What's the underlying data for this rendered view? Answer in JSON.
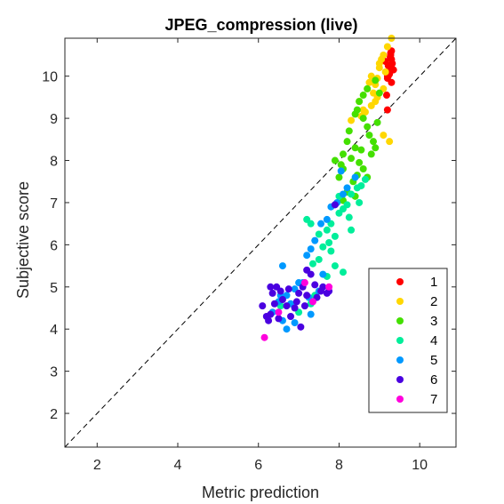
{
  "chart_data": {
    "type": "scatter",
    "title": "JPEG_compression (live)",
    "xlabel": "Metric prediction",
    "ylabel": "Subjective score",
    "xlim": [
      1.2,
      10.9
    ],
    "ylim": [
      1.2,
      10.9
    ],
    "xticks": [
      2,
      4,
      6,
      8,
      10
    ],
    "yticks": [
      2,
      3,
      4,
      5,
      6,
      7,
      8,
      9,
      10
    ],
    "grid": false,
    "reference_line": "y = x (dashed)",
    "legend_position": "bottom-right",
    "series": [
      {
        "name": "1",
        "color": "#ff0000",
        "points": [
          [
            9.2,
            10.0
          ],
          [
            9.25,
            10.1
          ],
          [
            9.3,
            10.2
          ],
          [
            9.32,
            10.3
          ],
          [
            9.3,
            10.4
          ],
          [
            9.28,
            10.5
          ],
          [
            9.3,
            10.6
          ],
          [
            9.25,
            10.05
          ],
          [
            9.2,
            9.95
          ],
          [
            9.35,
            10.15
          ],
          [
            9.27,
            10.45
          ],
          [
            9.22,
            10.25
          ],
          [
            9.18,
            9.55
          ],
          [
            9.2,
            9.2
          ],
          [
            9.15,
            10.35
          ],
          [
            9.3,
            9.85
          ],
          [
            9.28,
            10.55
          ],
          [
            9.22,
            10.0
          ]
        ]
      },
      {
        "name": "2",
        "color": "#ffd700",
        "points": [
          [
            9.3,
            10.9
          ],
          [
            9.2,
            10.7
          ],
          [
            9.1,
            10.5
          ],
          [
            9.0,
            10.3
          ],
          [
            9.15,
            10.1
          ],
          [
            8.95,
            9.95
          ],
          [
            8.9,
            9.8
          ],
          [
            8.85,
            9.6
          ],
          [
            8.9,
            9.4
          ],
          [
            8.8,
            9.3
          ],
          [
            8.6,
            9.2
          ],
          [
            8.55,
            9.05
          ],
          [
            8.3,
            8.95
          ],
          [
            8.8,
            10.0
          ],
          [
            9.0,
            10.2
          ],
          [
            8.7,
            9.7
          ],
          [
            8.65,
            9.15
          ],
          [
            9.25,
            8.45
          ],
          [
            9.1,
            8.6
          ],
          [
            8.95,
            9.5
          ],
          [
            9.05,
            10.4
          ],
          [
            8.75,
            9.85
          ],
          [
            8.5,
            9.4
          ],
          [
            9.1,
            9.7
          ]
        ]
      },
      {
        "name": "3",
        "color": "#44e000",
        "points": [
          [
            8.9,
            9.9
          ],
          [
            8.7,
            9.7
          ],
          [
            8.6,
            9.55
          ],
          [
            8.5,
            9.4
          ],
          [
            8.45,
            9.2
          ],
          [
            8.4,
            9.1
          ],
          [
            8.6,
            9.0
          ],
          [
            8.7,
            8.8
          ],
          [
            8.75,
            8.6
          ],
          [
            8.85,
            8.45
          ],
          [
            8.9,
            8.3
          ],
          [
            8.2,
            8.45
          ],
          [
            8.4,
            8.3
          ],
          [
            8.1,
            8.15
          ],
          [
            8.3,
            8.05
          ],
          [
            8.05,
            7.9
          ],
          [
            8.1,
            7.8
          ],
          [
            8.5,
            7.95
          ],
          [
            8.6,
            7.8
          ],
          [
            8.45,
            7.65
          ],
          [
            8.7,
            7.6
          ],
          [
            8.35,
            7.5
          ],
          [
            8.0,
            7.6
          ],
          [
            8.2,
            7.25
          ],
          [
            8.1,
            7.05
          ],
          [
            7.9,
            8.0
          ],
          [
            8.4,
            7.15
          ],
          [
            8.25,
            8.7
          ],
          [
            9.0,
            9.6
          ],
          [
            8.95,
            8.9
          ],
          [
            8.55,
            8.25
          ],
          [
            8.8,
            8.15
          ]
        ]
      },
      {
        "name": "4",
        "color": "#00ee9a",
        "points": [
          [
            8.65,
            7.55
          ],
          [
            8.55,
            7.4
          ],
          [
            8.45,
            7.35
          ],
          [
            8.3,
            7.2
          ],
          [
            8.2,
            6.95
          ],
          [
            8.1,
            6.85
          ],
          [
            8.0,
            6.75
          ],
          [
            7.9,
            6.95
          ],
          [
            8.0,
            7.15
          ],
          [
            7.8,
            6.5
          ],
          [
            7.7,
            6.35
          ],
          [
            7.9,
            6.2
          ],
          [
            7.75,
            6.05
          ],
          [
            7.8,
            5.85
          ],
          [
            7.6,
            5.95
          ],
          [
            7.5,
            6.25
          ],
          [
            7.3,
            6.5
          ],
          [
            7.2,
            6.6
          ],
          [
            7.35,
            5.55
          ],
          [
            7.5,
            5.65
          ],
          [
            7.9,
            5.5
          ],
          [
            8.1,
            5.35
          ],
          [
            8.3,
            6.35
          ],
          [
            8.5,
            7.0
          ],
          [
            8.25,
            6.65
          ],
          [
            7.4,
            4.8
          ],
          [
            7.3,
            4.6
          ],
          [
            7.0,
            4.4
          ],
          [
            6.55,
            4.55
          ],
          [
            7.7,
            5.25
          ]
        ]
      },
      {
        "name": "5",
        "color": "#0099ff",
        "points": [
          [
            8.4,
            7.6
          ],
          [
            8.2,
            7.35
          ],
          [
            8.1,
            7.2
          ],
          [
            7.95,
            7.0
          ],
          [
            7.8,
            6.9
          ],
          [
            7.7,
            6.6
          ],
          [
            7.55,
            6.5
          ],
          [
            7.4,
            6.1
          ],
          [
            7.3,
            5.9
          ],
          [
            7.2,
            5.75
          ],
          [
            6.6,
            5.5
          ],
          [
            7.0,
            5.1
          ],
          [
            6.9,
            4.95
          ],
          [
            6.7,
            4.8
          ],
          [
            6.5,
            4.65
          ],
          [
            6.35,
            4.4
          ],
          [
            6.6,
            4.2
          ],
          [
            6.7,
            4.0
          ],
          [
            6.9,
            4.15
          ],
          [
            7.3,
            4.35
          ],
          [
            7.5,
            4.9
          ],
          [
            7.6,
            5.3
          ],
          [
            7.1,
            5.1
          ],
          [
            6.8,
            4.6
          ],
          [
            8.05,
            7.75
          ],
          [
            7.25,
            4.75
          ],
          [
            6.55,
            4.8
          ]
        ]
      },
      {
        "name": "6",
        "color": "#4a00e0",
        "points": [
          [
            6.1,
            4.55
          ],
          [
            6.2,
            4.3
          ],
          [
            6.3,
            4.35
          ],
          [
            6.4,
            4.6
          ],
          [
            6.35,
            4.85
          ],
          [
            6.3,
            5.0
          ],
          [
            6.45,
            5.0
          ],
          [
            6.55,
            4.9
          ],
          [
            6.6,
            4.7
          ],
          [
            6.7,
            4.55
          ],
          [
            6.8,
            4.3
          ],
          [
            6.9,
            4.5
          ],
          [
            7.0,
            4.85
          ],
          [
            7.1,
            5.0
          ],
          [
            7.2,
            4.8
          ],
          [
            7.3,
            5.3
          ],
          [
            7.2,
            5.4
          ],
          [
            7.4,
            5.05
          ],
          [
            7.6,
            5.0
          ],
          [
            7.7,
            4.85
          ],
          [
            7.75,
            4.9
          ],
          [
            7.05,
            4.05
          ],
          [
            6.5,
            4.25
          ],
          [
            6.75,
            4.95
          ],
          [
            7.45,
            4.75
          ],
          [
            6.95,
            4.65
          ],
          [
            6.25,
            4.2
          ],
          [
            7.15,
            4.55
          ],
          [
            7.9,
            6.95
          ],
          [
            7.55,
            4.9
          ]
        ]
      },
      {
        "name": "7",
        "color": "#ff00dd",
        "points": [
          [
            6.15,
            3.8
          ],
          [
            7.15,
            5.1
          ],
          [
            7.35,
            4.65
          ],
          [
            7.75,
            5.0
          ],
          [
            6.5,
            4.4
          ]
        ]
      }
    ]
  }
}
